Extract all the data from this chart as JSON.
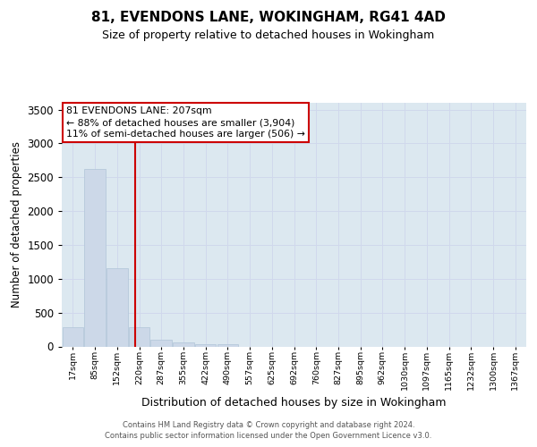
{
  "title": "81, EVENDONS LANE, WOKINGHAM, RG41 4AD",
  "subtitle": "Size of property relative to detached houses in Wokingham",
  "xlabel": "Distribution of detached houses by size in Wokingham",
  "ylabel": "Number of detached properties",
  "bar_labels": [
    "17sqm",
    "85sqm",
    "152sqm",
    "220sqm",
    "287sqm",
    "355sqm",
    "422sqm",
    "490sqm",
    "557sqm",
    "625sqm",
    "692sqm",
    "760sqm",
    "827sqm",
    "895sqm",
    "962sqm",
    "1030sqm",
    "1097sqm",
    "1165sqm",
    "1232sqm",
    "1300sqm",
    "1367sqm"
  ],
  "bar_values": [
    290,
    2620,
    1150,
    290,
    100,
    60,
    35,
    35,
    0,
    0,
    0,
    0,
    0,
    0,
    0,
    0,
    0,
    0,
    0,
    0,
    0
  ],
  "bar_color": "#ccd8e8",
  "bar_edge_color": "#b0c4d8",
  "annotation_title": "81 EVENDONS LANE: 207sqm",
  "annotation_line1": "← 88% of detached houses are smaller (3,904)",
  "annotation_line2": "11% of semi-detached houses are larger (506) →",
  "annotation_box_color": "#ffffff",
  "annotation_border_color": "#cc0000",
  "vline_color": "#cc0000",
  "vline_x_index": 2.81,
  "ylim": [
    0,
    3600
  ],
  "yticks": [
    0,
    500,
    1000,
    1500,
    2000,
    2500,
    3000,
    3500
  ],
  "grid_color": "#d0d8ec",
  "bg_color": "#dce8f0",
  "fig_bg_color": "#ffffff",
  "footer_line1": "Contains HM Land Registry data © Crown copyright and database right 2024.",
  "footer_line2": "Contains public sector information licensed under the Open Government Licence v3.0."
}
